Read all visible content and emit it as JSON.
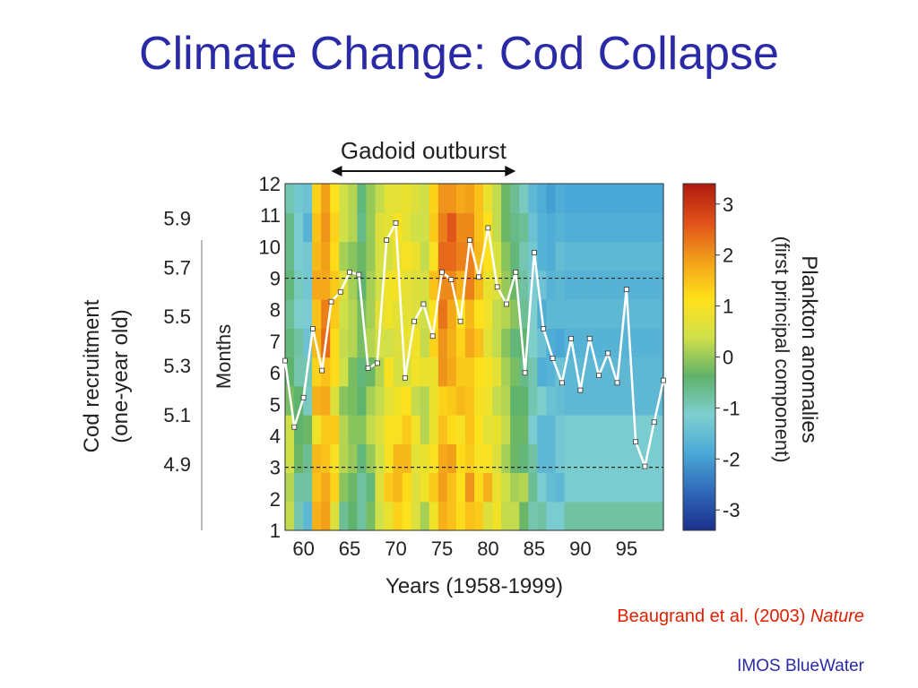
{
  "slide": {
    "title": "Climate Change: Cod Collapse",
    "citation_authors": "Beaugrand et al. (2003)",
    "citation_journal": "Nature",
    "footer": "IMOS BlueWater"
  },
  "colors": {
    "title": "#2a2aa6",
    "citation": "#e02000",
    "recruitment_line": "#ffffff"
  },
  "chart_data": {
    "type": "heatmap",
    "annotation": "Gadoid outburst",
    "annotation_range": [
      1963,
      1983
    ],
    "xlabel": "Years (1958-1999)",
    "x_range": [
      1958,
      1999
    ],
    "x_ticks": [
      60,
      65,
      70,
      75,
      80,
      85,
      90,
      95
    ],
    "ylabel": "Months",
    "y_range": [
      1,
      12
    ],
    "y_ticks": [
      1,
      2,
      3,
      4,
      5,
      6,
      7,
      8,
      9,
      10,
      11,
      12
    ],
    "dashed_lines_months": [
      3,
      9
    ],
    "colorbar_label_line1": "Plankton anomalies",
    "colorbar_label_line2": "(first principal component)",
    "colorbar_range": [
      -3.4,
      3.4
    ],
    "colorbar_ticks": [
      3,
      2,
      1,
      0,
      -1,
      -2,
      -3
    ],
    "colorscale": [
      "#1c2f8c",
      "#2f68b8",
      "#4aa9d6",
      "#7fcfd0",
      "#5fb26a",
      "#cfe04a",
      "#ffe11a",
      "#f2a01a",
      "#e0501a",
      "#b01a10"
    ],
    "anomaly_grid": [
      [
        0.3,
        -0.9,
        -1.6,
        1.7,
        1.9,
        0.6,
        -0.7,
        -0.4,
        -0.8,
        -0.2,
        0.4,
        0.8,
        1.3,
        1.1,
        0.6,
        0.1,
        0.9,
        1.7,
        1.5,
        1.2,
        1.5,
        1.4,
        0.6,
        0.9,
        0.3,
        0.3,
        -0.3,
        -0.9,
        -0.8,
        -1.2,
        -1.2,
        -0.8,
        -0.8,
        -0.8,
        -0.8,
        -0.8,
        -0.8,
        -0.8,
        -0.8,
        -0.8,
        -0.8,
        -0.8
      ],
      [
        0.2,
        -0.8,
        -0.8,
        1.5,
        1.8,
        1.3,
        -0.1,
        -0.3,
        -0.8,
        -0.5,
        0.6,
        1.4,
        1.6,
        1.2,
        0.6,
        0.9,
        1.4,
        1.9,
        1.5,
        1.1,
        2.0,
        1.2,
        1.7,
        0.8,
        0.4,
        0.1,
        0.2,
        -0.7,
        -1.2,
        -1.5,
        -1.6,
        -1.2,
        -1.2,
        -1.2,
        -1.2,
        -1.2,
        -1.2,
        -1.2,
        -1.2,
        -1.2,
        -1.2,
        -1.2
      ],
      [
        0.4,
        -0.3,
        -0.7,
        1.6,
        1.5,
        1.0,
        0.2,
        0.0,
        -0.5,
        0.0,
        0.4,
        1.0,
        1.6,
        1.6,
        0.7,
        0.8,
        1.0,
        1.8,
        1.9,
        1.2,
        1.4,
        1.0,
        1.0,
        0.6,
        0.1,
        -0.3,
        -0.5,
        -0.8,
        -1.6,
        -1.6,
        -1.3,
        -1.2,
        -1.2,
        -1.2,
        -1.2,
        -1.2,
        -1.2,
        -1.2,
        -1.2,
        -1.2,
        -1.2,
        -1.2
      ],
      [
        0.4,
        -0.4,
        -0.3,
        0.9,
        1.4,
        1.4,
        0.2,
        -0.1,
        -0.1,
        0.3,
        0.6,
        1.0,
        1.0,
        1.4,
        0.9,
        0.2,
        0.8,
        1.5,
        1.2,
        1.0,
        1.5,
        1.1,
        0.7,
        0.8,
        0.3,
        -0.3,
        -0.3,
        -1.2,
        -1.6,
        -1.6,
        -1.3,
        -1.2,
        -1.2,
        -1.2,
        -1.2,
        -1.2,
        -1.2,
        -1.2,
        -1.2,
        -1.2,
        -1.2,
        -1.2
      ],
      [
        -0.2,
        -0.4,
        -1.0,
        1.7,
        1.8,
        0.6,
        -0.1,
        -0.2,
        -0.4,
        0.1,
        0.3,
        0.7,
        0.9,
        1.1,
        0.3,
        0.2,
        0.8,
        1.3,
        1.4,
        1.6,
        1.5,
        1.0,
        0.9,
        0.3,
        0.2,
        -0.4,
        -0.4,
        -0.9,
        -1.1,
        -1.4,
        -1.5,
        -1.6,
        -1.6,
        -1.6,
        -1.6,
        -1.6,
        -1.6,
        -1.6,
        -1.6,
        -1.6,
        -1.6,
        -1.6
      ],
      [
        -0.4,
        -0.9,
        -0.9,
        1.3,
        1.5,
        1.2,
        0.4,
        -0.2,
        -0.5,
        -0.3,
        0.2,
        1.0,
        0.5,
        0.5,
        0.9,
        0.8,
        0.8,
        2.0,
        1.8,
        1.4,
        1.4,
        1.1,
        1.0,
        0.7,
        0.1,
        -0.2,
        -0.6,
        -0.9,
        -1.8,
        -1.7,
        -1.4,
        -1.6,
        -1.6,
        -1.6,
        -1.6,
        -1.6,
        -1.6,
        -1.6,
        -1.6,
        -1.6,
        -1.6,
        -1.6
      ],
      [
        -0.5,
        -0.8,
        -1.4,
        1.6,
        2.4,
        1.2,
        0.3,
        0.2,
        -0.2,
        0.2,
        0.5,
        0.4,
        0.6,
        0.8,
        0.9,
        0.3,
        1.3,
        2.0,
        1.7,
        1.3,
        1.8,
        1.5,
        0.7,
        0.3,
        -0.1,
        -0.5,
        -0.4,
        -1.1,
        -1.4,
        -1.8,
        -1.9,
        -1.7,
        -1.7,
        -1.7,
        -1.7,
        -1.7,
        -1.7,
        -1.7,
        -1.7,
        -1.7,
        -1.7,
        -1.7
      ],
      [
        -0.7,
        -1.1,
        -1.2,
        1.5,
        2.2,
        1.4,
        0.4,
        0.2,
        -0.2,
        0.1,
        0.7,
        0.9,
        0.7,
        0.7,
        0.6,
        0.4,
        1.1,
        2.3,
        1.8,
        1.1,
        1.6,
        1.1,
        0.9,
        0.3,
        0.2,
        -0.1,
        -0.7,
        -1.1,
        -1.8,
        -1.6,
        -1.6,
        -1.6,
        -1.6,
        -1.6,
        -1.6,
        -1.6,
        -1.6,
        -1.6,
        -1.6,
        -1.6,
        -1.6,
        -1.6
      ],
      [
        -0.5,
        -1.0,
        -1.3,
        1.8,
        1.8,
        1.4,
        0.6,
        0.1,
        -0.4,
        0.1,
        0.4,
        0.9,
        1.0,
        0.7,
        0.6,
        0.5,
        1.5,
        2.1,
        2.1,
        1.7,
        2.2,
        1.6,
        0.8,
        0.6,
        0.0,
        -0.3,
        -0.8,
        -1.2,
        -1.4,
        -1.7,
        -1.6,
        -1.7,
        -1.7,
        -1.7,
        -1.7,
        -1.7,
        -1.7,
        -1.7,
        -1.7,
        -1.7,
        -1.7,
        -1.7
      ],
      [
        -0.6,
        -1.2,
        -1.3,
        1.6,
        1.9,
        1.2,
        0.1,
        -0.1,
        -0.3,
        0.0,
        0.5,
        0.5,
        0.8,
        1.0,
        0.8,
        0.3,
        1.0,
        2.4,
        2.4,
        2.2,
        2.2,
        1.6,
        1.1,
        0.5,
        -0.1,
        -0.5,
        -0.9,
        -1.3,
        -1.7,
        -1.8,
        -1.5,
        -1.6,
        -1.6,
        -1.6,
        -1.6,
        -1.6,
        -1.6,
        -1.6,
        -1.6,
        -1.6,
        -1.6,
        -1.6
      ],
      [
        -0.6,
        -1.2,
        -1.7,
        1.5,
        2.0,
        1.3,
        0.4,
        0.2,
        -0.6,
        0.0,
        0.6,
        0.7,
        1.0,
        0.7,
        0.4,
        0.4,
        1.4,
        2.2,
        2.6,
        2.1,
        2.1,
        1.5,
        1.1,
        0.3,
        -0.3,
        -0.6,
        -0.7,
        -1.4,
        -1.7,
        -1.8,
        -1.7,
        -1.8,
        -1.8,
        -1.8,
        -1.8,
        -1.8,
        -1.8,
        -1.8,
        -1.8,
        -1.8,
        -1.8,
        -1.8
      ],
      [
        -0.9,
        -1.3,
        -1.4,
        1.3,
        1.9,
        1.1,
        0.4,
        0.2,
        -0.5,
        0.0,
        0.3,
        0.7,
        0.7,
        0.8,
        0.6,
        0.4,
        1.3,
        2.0,
        2.0,
        1.8,
        1.9,
        1.5,
        0.8,
        0.3,
        -0.3,
        -0.7,
        -1.0,
        -1.6,
        -1.8,
        -2.0,
        -1.8,
        -1.9,
        -1.9,
        -1.9,
        -1.9,
        -1.9,
        -1.9,
        -1.9,
        -1.9,
        -1.9,
        -1.9,
        -1.9
      ]
    ],
    "recruitment_axis_label_line1": "Cod recruitment",
    "recruitment_axis_label_line2": "(one-year old)",
    "recruitment_range": [
      4.63,
      6.04
    ],
    "recruitment_ticks": [
      5.9,
      5.7,
      5.5,
      5.3,
      5.1,
      4.9
    ],
    "recruitment_series": {
      "x": [
        1958,
        1959,
        1960,
        1961,
        1962,
        1963,
        1964,
        1965,
        1966,
        1967,
        1968,
        1969,
        1970,
        1971,
        1972,
        1973,
        1974,
        1975,
        1976,
        1977,
        1978,
        1979,
        1980,
        1981,
        1982,
        1983,
        1984,
        1985,
        1986,
        1987,
        1988,
        1989,
        1990,
        1991,
        1992,
        1993,
        1994,
        1995,
        1996,
        1997,
        1998,
        1999
      ],
      "y": [
        5.32,
        5.05,
        5.17,
        5.45,
        5.28,
        5.56,
        5.6,
        5.68,
        5.67,
        5.29,
        5.31,
        5.81,
        5.88,
        5.25,
        5.48,
        5.55,
        5.42,
        5.68,
        5.65,
        5.48,
        5.81,
        5.66,
        5.86,
        5.62,
        5.55,
        5.68,
        5.27,
        5.76,
        5.45,
        5.33,
        5.23,
        5.41,
        5.2,
        5.41,
        5.26,
        5.35,
        5.23,
        5.61,
        4.99,
        4.89,
        5.07,
        5.24
      ]
    }
  }
}
